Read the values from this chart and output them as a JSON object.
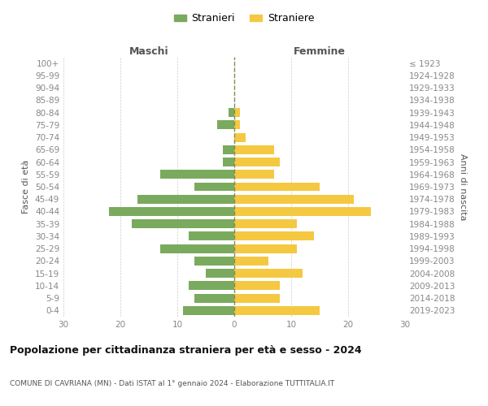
{
  "age_groups": [
    "100+",
    "95-99",
    "90-94",
    "85-89",
    "80-84",
    "75-79",
    "70-74",
    "65-69",
    "60-64",
    "55-59",
    "50-54",
    "45-49",
    "40-44",
    "35-39",
    "30-34",
    "25-29",
    "20-24",
    "15-19",
    "10-14",
    "5-9",
    "0-4"
  ],
  "birth_years": [
    "≤ 1923",
    "1924-1928",
    "1929-1933",
    "1934-1938",
    "1939-1943",
    "1944-1948",
    "1949-1953",
    "1954-1958",
    "1959-1963",
    "1964-1968",
    "1969-1973",
    "1974-1978",
    "1979-1983",
    "1984-1988",
    "1989-1993",
    "1994-1998",
    "1999-2003",
    "2004-2008",
    "2009-2013",
    "2014-2018",
    "2019-2023"
  ],
  "males": [
    0,
    0,
    0,
    0,
    1,
    3,
    0,
    2,
    2,
    13,
    7,
    17,
    22,
    18,
    8,
    13,
    7,
    5,
    8,
    7,
    9
  ],
  "females": [
    0,
    0,
    0,
    0,
    1,
    1,
    2,
    7,
    8,
    7,
    15,
    21,
    24,
    11,
    14,
    11,
    6,
    12,
    8,
    8,
    15
  ],
  "male_color": "#7aaa5e",
  "female_color": "#f5c842",
  "title": "Popolazione per cittadinanza straniera per età e sesso - 2024",
  "subtitle": "COMUNE DI CAVRIANA (MN) - Dati ISTAT al 1° gennaio 2024 - Elaborazione TUTTITALIA.IT",
  "ylabel_left": "Fasce di età",
  "ylabel_right": "Anni di nascita",
  "xlabel_left": "Maschi",
  "xlabel_right": "Femmine",
  "legend_male": "Stranieri",
  "legend_female": "Straniere",
  "xlim": 30,
  "background_color": "#ffffff",
  "grid_color": "#cccccc",
  "center_line_color": "#888855",
  "tick_color": "#888888",
  "label_color": "#555555",
  "title_color": "#111111"
}
